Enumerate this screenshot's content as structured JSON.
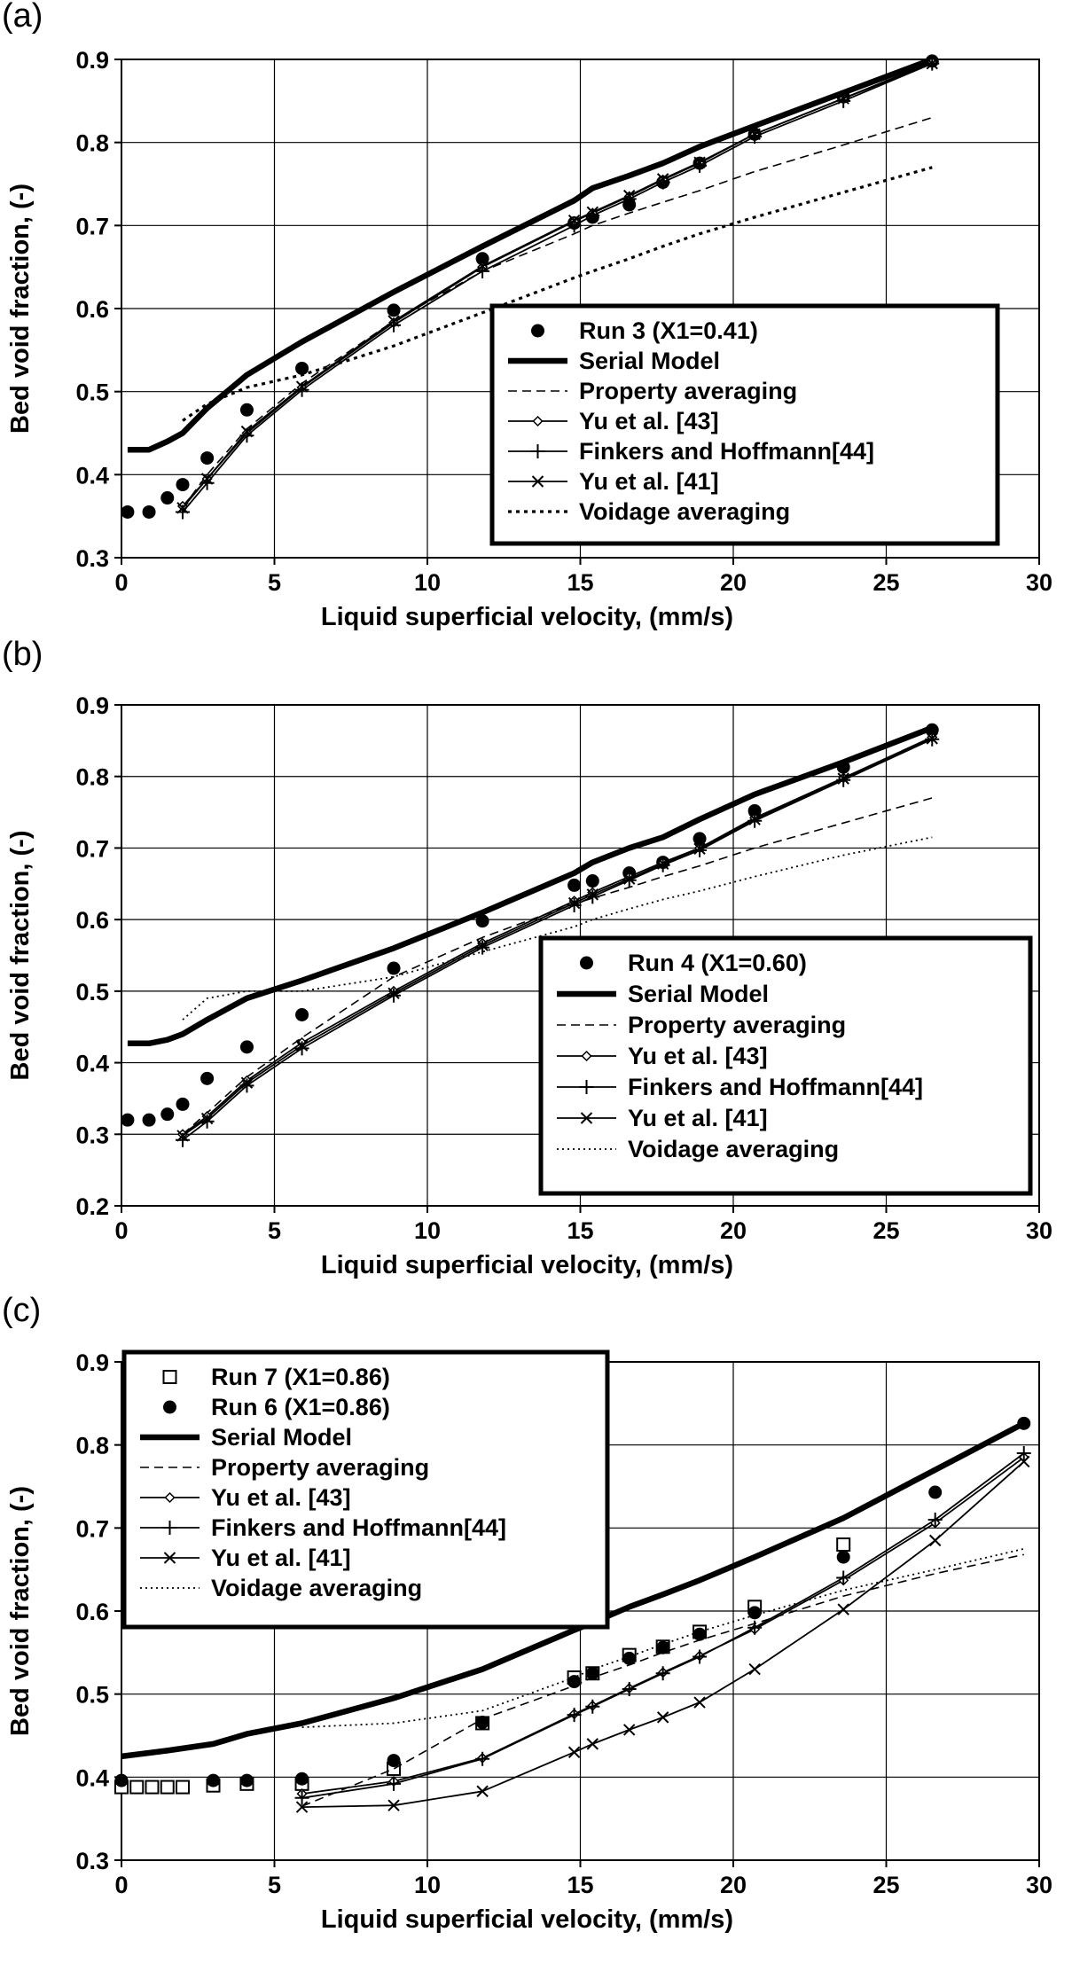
{
  "chart_data": [
    {
      "type": "line",
      "panel_label": "(a)",
      "xlabel": "Liquid superficial velocity, (mm/s)",
      "ylabel": "Bed void fraction, (-)",
      "xlim": [
        0,
        30
      ],
      "ylim": [
        0.3,
        0.9
      ],
      "xticks": [
        "0",
        "5",
        "10",
        "15",
        "20",
        "25",
        "30"
      ],
      "yticks": [
        "0.3",
        "0.4",
        "0.5",
        "0.6",
        "0.7",
        "0.8",
        "0.9"
      ],
      "grid": true,
      "legend_position": "bottom-right",
      "series": [
        {
          "name": "Run 3 (X1=0.41)",
          "style": "marker-filled-circle",
          "x": [
            0.2,
            0.9,
            1.5,
            2.0,
            2.8,
            4.1,
            5.9,
            8.9,
            11.8,
            14.8,
            15.4,
            16.6,
            17.7,
            18.9,
            20.7,
            23.6,
            26.5
          ],
          "y": [
            0.355,
            0.355,
            0.372,
            0.388,
            0.42,
            0.478,
            0.528,
            0.598,
            0.66,
            0.703,
            0.71,
            0.725,
            0.752,
            0.775,
            0.81,
            0.855,
            0.898
          ]
        },
        {
          "name": "Serial Model",
          "style": "thick",
          "x": [
            0.2,
            0.9,
            1.5,
            2.0,
            2.8,
            4.1,
            5.9,
            8.9,
            11.8,
            14.8,
            15.4,
            16.6,
            17.7,
            18.9,
            20.7,
            23.6,
            26.5
          ],
          "y": [
            0.43,
            0.43,
            0.44,
            0.45,
            0.48,
            0.52,
            0.56,
            0.62,
            0.675,
            0.73,
            0.745,
            0.76,
            0.775,
            0.795,
            0.82,
            0.86,
            0.9
          ]
        },
        {
          "name": "Property averaging",
          "style": "dashed",
          "x": [
            2.0,
            2.8,
            4.1,
            5.9,
            8.9,
            11.8,
            14.8,
            15.4,
            16.6,
            17.7,
            18.9,
            20.7,
            23.6,
            26.5
          ],
          "y": [
            0.36,
            0.4,
            0.455,
            0.51,
            0.585,
            0.645,
            0.69,
            0.7,
            0.715,
            0.728,
            0.742,
            0.765,
            0.797,
            0.83
          ]
        },
        {
          "name": "Yu et al. [43]",
          "style": "marker-diamond",
          "x": [
            2.0,
            2.8,
            4.1,
            5.9,
            8.9,
            11.8,
            14.8,
            15.4,
            16.6,
            17.7,
            18.9,
            20.7,
            23.6,
            26.5
          ],
          "y": [
            0.362,
            0.395,
            0.45,
            0.505,
            0.583,
            0.65,
            0.705,
            0.715,
            0.735,
            0.755,
            0.775,
            0.81,
            0.853,
            0.897
          ]
        },
        {
          "name": "Finkers and Hoffmann[44]",
          "style": "marker-plus",
          "x": [
            2.0,
            2.8,
            4.1,
            5.9,
            8.9,
            11.8,
            14.8,
            15.4,
            16.6,
            17.7,
            18.9,
            20.7,
            23.6,
            26.5
          ],
          "y": [
            0.355,
            0.39,
            0.447,
            0.502,
            0.58,
            0.645,
            0.7,
            0.712,
            0.732,
            0.752,
            0.772,
            0.807,
            0.85,
            0.895
          ]
        },
        {
          "name": "Yu et al. [41]",
          "style": "marker-x",
          "x": [
            2.0,
            2.8,
            4.1,
            5.9,
            8.9,
            11.8,
            14.8,
            15.4,
            16.6,
            17.7,
            18.9,
            20.7,
            23.6,
            26.5
          ],
          "y": [
            0.36,
            0.395,
            0.452,
            0.506,
            0.585,
            0.651,
            0.706,
            0.716,
            0.736,
            0.756,
            0.776,
            0.81,
            0.853,
            0.895
          ]
        },
        {
          "name": "Voidage averaging",
          "style": "dotted-heavy",
          "x": [
            2.0,
            2.8,
            4.1,
            5.9,
            8.9,
            11.8,
            14.8,
            15.4,
            16.6,
            17.7,
            18.9,
            20.7,
            23.6,
            26.5
          ],
          "y": [
            0.465,
            0.485,
            0.505,
            0.52,
            0.555,
            0.595,
            0.637,
            0.645,
            0.66,
            0.675,
            0.69,
            0.71,
            0.74,
            0.77
          ]
        }
      ]
    },
    {
      "type": "line",
      "panel_label": "(b)",
      "xlabel": "Liquid superficial velocity, (mm/s)",
      "ylabel": "Bed void fraction, (-)",
      "xlim": [
        0,
        30
      ],
      "ylim": [
        0.2,
        0.9
      ],
      "xticks": [
        "0",
        "5",
        "10",
        "15",
        "20",
        "25",
        "30"
      ],
      "yticks": [
        "0.2",
        "0.3",
        "0.4",
        "0.5",
        "0.6",
        "0.7",
        "0.8",
        "0.9"
      ],
      "grid": true,
      "legend_position": "bottom-right",
      "series": [
        {
          "name": "Run 4 (X1=0.60)",
          "style": "marker-filled-circle",
          "x": [
            0.2,
            0.9,
            1.5,
            2.0,
            2.8,
            4.1,
            5.9,
            8.9,
            11.8,
            14.8,
            15.4,
            16.6,
            17.7,
            18.9,
            20.7,
            23.6,
            26.5
          ],
          "y": [
            0.32,
            0.32,
            0.328,
            0.342,
            0.378,
            0.422,
            0.467,
            0.532,
            0.598,
            0.648,
            0.654,
            0.665,
            0.68,
            0.713,
            0.752,
            0.813,
            0.865
          ]
        },
        {
          "name": "Serial Model",
          "style": "thick",
          "x": [
            0.2,
            0.9,
            1.5,
            2.0,
            2.8,
            4.1,
            5.9,
            8.9,
            11.8,
            14.8,
            15.4,
            16.6,
            17.7,
            18.9,
            20.7,
            23.6,
            26.5
          ],
          "y": [
            0.427,
            0.427,
            0.432,
            0.44,
            0.46,
            0.49,
            0.515,
            0.56,
            0.61,
            0.665,
            0.68,
            0.7,
            0.715,
            0.74,
            0.775,
            0.82,
            0.868
          ]
        },
        {
          "name": "Property averaging",
          "style": "dashed",
          "x": [
            2.0,
            2.8,
            4.1,
            5.9,
            8.9,
            11.8,
            14.8,
            15.4,
            16.6,
            17.7,
            18.9,
            20.7,
            23.6,
            26.5
          ],
          "y": [
            0.3,
            0.33,
            0.38,
            0.435,
            0.52,
            0.575,
            0.622,
            0.63,
            0.645,
            0.66,
            0.675,
            0.7,
            0.735,
            0.77
          ]
        },
        {
          "name": "Yu et al. [43]",
          "style": "marker-diamond",
          "x": [
            2.0,
            2.8,
            4.1,
            5.9,
            8.9,
            11.8,
            14.8,
            15.4,
            16.6,
            17.7,
            18.9,
            20.7,
            23.6,
            26.5
          ],
          "y": [
            0.3,
            0.325,
            0.375,
            0.428,
            0.5,
            0.567,
            0.626,
            0.638,
            0.66,
            0.68,
            0.7,
            0.742,
            0.798,
            0.855
          ]
        },
        {
          "name": "Finkers and Hoffmann[44]",
          "style": "marker-plus",
          "x": [
            2.0,
            2.8,
            4.1,
            5.9,
            8.9,
            11.8,
            14.8,
            15.4,
            16.6,
            17.7,
            18.9,
            20.7,
            23.6,
            26.5
          ],
          "y": [
            0.292,
            0.318,
            0.368,
            0.42,
            0.494,
            0.561,
            0.62,
            0.632,
            0.655,
            0.676,
            0.697,
            0.738,
            0.795,
            0.852
          ]
        },
        {
          "name": "Yu et al. [41]",
          "style": "marker-x",
          "x": [
            2.0,
            2.8,
            4.1,
            5.9,
            8.9,
            11.8,
            14.8,
            15.4,
            16.6,
            17.7,
            18.9,
            20.7,
            23.6,
            26.5
          ],
          "y": [
            0.298,
            0.322,
            0.372,
            0.424,
            0.497,
            0.564,
            0.623,
            0.635,
            0.657,
            0.678,
            0.699,
            0.74,
            0.797,
            0.853
          ]
        },
        {
          "name": "Voidage averaging",
          "style": "dotted",
          "x": [
            2.0,
            2.8,
            4.1,
            5.9,
            8.9,
            11.8,
            14.8,
            15.4,
            16.6,
            17.7,
            18.9,
            20.7,
            23.6,
            26.5
          ],
          "y": [
            0.46,
            0.49,
            0.5,
            0.5,
            0.52,
            0.555,
            0.59,
            0.6,
            0.615,
            0.628,
            0.64,
            0.66,
            0.69,
            0.715
          ]
        }
      ]
    },
    {
      "type": "line",
      "panel_label": "(c)",
      "xlabel": "Liquid superficial velocity, (mm/s)",
      "ylabel": "Bed void fraction, (-)",
      "xlim": [
        0,
        30
      ],
      "ylim": [
        0.3,
        0.9
      ],
      "xticks": [
        "0",
        "5",
        "10",
        "15",
        "20",
        "25",
        "30"
      ],
      "yticks": [
        "0.3",
        "0.4",
        "0.5",
        "0.6",
        "0.7",
        "0.8",
        "0.9"
      ],
      "grid": true,
      "legend_position": "top-left",
      "series": [
        {
          "name": "Run 7 (X1=0.86)",
          "style": "marker-open-square",
          "x": [
            0.0,
            0.5,
            1.0,
            1.5,
            2.0,
            3.0,
            4.1,
            5.9,
            8.9,
            11.8,
            14.8,
            15.4,
            16.6,
            17.7,
            18.9,
            20.7,
            23.6
          ],
          "y": [
            0.388,
            0.388,
            0.388,
            0.388,
            0.388,
            0.39,
            0.392,
            0.392,
            0.41,
            0.465,
            0.52,
            0.525,
            0.547,
            0.557,
            0.575,
            0.605,
            0.68
          ]
        },
        {
          "name": "Run 6 (X1=0.86)",
          "style": "marker-filled-circle",
          "x": [
            0.0,
            3.0,
            4.1,
            5.9,
            8.9,
            11.8,
            14.8,
            15.4,
            16.6,
            17.7,
            18.9,
            20.7,
            23.6,
            26.6,
            29.5
          ],
          "y": [
            0.396,
            0.396,
            0.396,
            0.398,
            0.42,
            0.466,
            0.515,
            0.525,
            0.543,
            0.556,
            0.572,
            0.598,
            0.665,
            0.743,
            0.826
          ]
        },
        {
          "name": "Serial Model",
          "style": "thick",
          "x": [
            0.0,
            1.5,
            3.0,
            4.1,
            5.9,
            8.9,
            11.8,
            14.8,
            15.4,
            16.6,
            17.7,
            18.9,
            20.7,
            23.6,
            26.6,
            29.5
          ],
          "y": [
            0.425,
            0.432,
            0.44,
            0.452,
            0.465,
            0.495,
            0.53,
            0.577,
            0.586,
            0.605,
            0.62,
            0.637,
            0.665,
            0.712,
            0.77,
            0.826
          ]
        },
        {
          "name": "Property averaging",
          "style": "dashed",
          "x": [
            5.9,
            8.9,
            11.8,
            14.8,
            15.4,
            16.6,
            17.7,
            18.9,
            20.7,
            23.6,
            26.6,
            29.5
          ],
          "y": [
            0.365,
            0.41,
            0.47,
            0.51,
            0.52,
            0.535,
            0.55,
            0.565,
            0.585,
            0.618,
            0.645,
            0.668
          ]
        },
        {
          "name": "Yu et al. [43]",
          "style": "marker-diamond",
          "x": [
            5.9,
            8.9,
            11.8,
            14.8,
            15.4,
            16.6,
            17.7,
            18.9,
            20.7,
            23.6,
            26.6,
            29.5
          ],
          "y": [
            0.38,
            0.395,
            0.423,
            0.476,
            0.486,
            0.507,
            0.526,
            0.546,
            0.578,
            0.637,
            0.706,
            0.785
          ]
        },
        {
          "name": "Finkers and Hoffmann[44]",
          "style": "marker-plus",
          "x": [
            5.9,
            8.9,
            11.8,
            14.8,
            15.4,
            16.6,
            17.7,
            18.9,
            20.7,
            23.6,
            26.6,
            29.5
          ],
          "y": [
            0.375,
            0.392,
            0.422,
            0.475,
            0.485,
            0.506,
            0.525,
            0.545,
            0.58,
            0.64,
            0.71,
            0.79
          ]
        },
        {
          "name": "Yu et al. [41]",
          "style": "marker-x",
          "x": [
            5.9,
            8.9,
            11.8,
            14.8,
            15.4,
            16.6,
            17.7,
            18.9,
            20.7,
            23.6,
            26.6,
            29.5
          ],
          "y": [
            0.364,
            0.366,
            0.383,
            0.43,
            0.44,
            0.457,
            0.472,
            0.49,
            0.53,
            0.602,
            0.685,
            0.78
          ]
        },
        {
          "name": "Voidage averaging",
          "style": "dotted",
          "x": [
            5.9,
            8.9,
            11.8,
            14.8,
            15.4,
            16.6,
            17.7,
            18.9,
            20.7,
            23.6,
            26.6,
            29.5
          ],
          "y": [
            0.46,
            0.465,
            0.48,
            0.52,
            0.53,
            0.545,
            0.56,
            0.575,
            0.595,
            0.625,
            0.65,
            0.675
          ]
        }
      ]
    }
  ]
}
